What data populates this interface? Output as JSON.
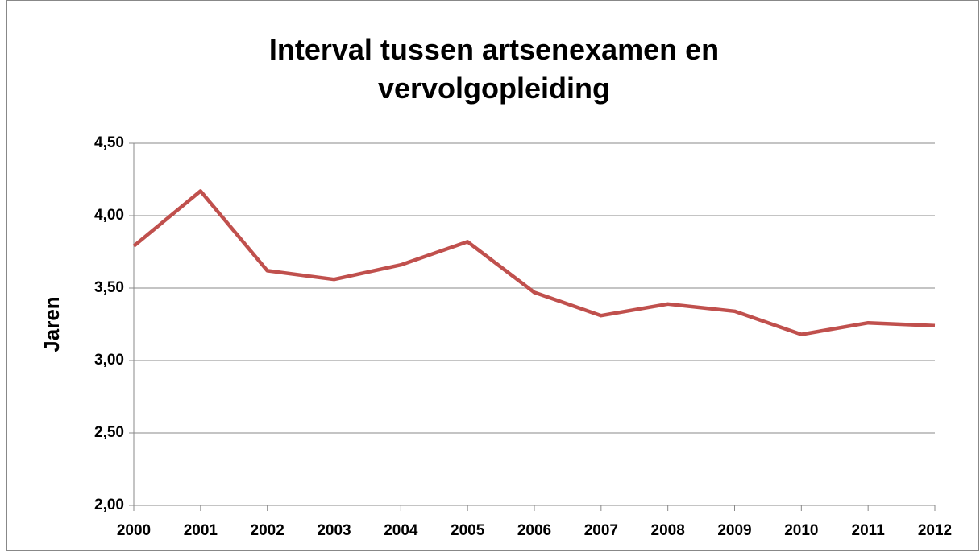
{
  "chart_data": {
    "type": "line",
    "title": "Interval tussen artsenexamen en vervolgopleiding",
    "ylabel": "Jaren",
    "x": [
      2000,
      2001,
      2002,
      2003,
      2004,
      2005,
      2006,
      2007,
      2008,
      2009,
      2010,
      2011,
      2012
    ],
    "series": [
      {
        "name": "Jaren",
        "color": "#c0504d",
        "values": [
          3.79,
          4.17,
          3.62,
          3.56,
          3.66,
          3.82,
          3.47,
          3.31,
          3.39,
          3.34,
          3.18,
          3.26,
          3.24
        ]
      }
    ],
    "xlim": [
      2000,
      2012
    ],
    "xticks": [
      2000,
      2001,
      2002,
      2003,
      2004,
      2005,
      2006,
      2007,
      2008,
      2009,
      2010,
      2011,
      2012
    ],
    "ylim": [
      2,
      4.5
    ],
    "yticks": [
      {
        "value": 2,
        "label": "2,00"
      },
      {
        "value": 2.5,
        "label": "2,50"
      },
      {
        "value": 3,
        "label": "3,00"
      },
      {
        "value": 3.5,
        "label": "3,50"
      },
      {
        "value": 4,
        "label": "4,00"
      },
      {
        "value": 4.5,
        "label": "4,50"
      }
    ],
    "grid": true
  }
}
